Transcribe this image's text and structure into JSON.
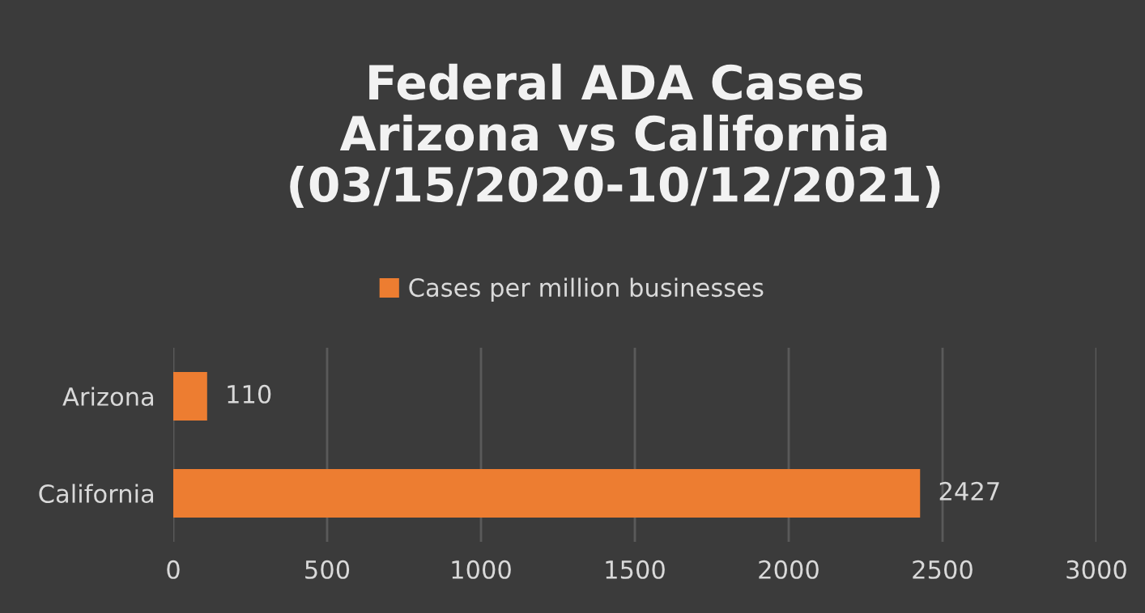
{
  "chart_data": {
    "type": "bar",
    "orientation": "horizontal",
    "title": "Federal ADA Cases\nArizona vs California\n(03/15/2020-10/12/2021)",
    "categories": [
      "Arizona",
      "California"
    ],
    "series": [
      {
        "name": "Cases per million businesses",
        "color": "#ed7d31",
        "values": [
          110,
          2427
        ]
      }
    ],
    "xlim": [
      0,
      3000
    ],
    "xticks": [
      0,
      500,
      1000,
      1500,
      2000,
      2500,
      3000
    ],
    "grid": "x",
    "legend": "top",
    "data_labels": true
  }
}
